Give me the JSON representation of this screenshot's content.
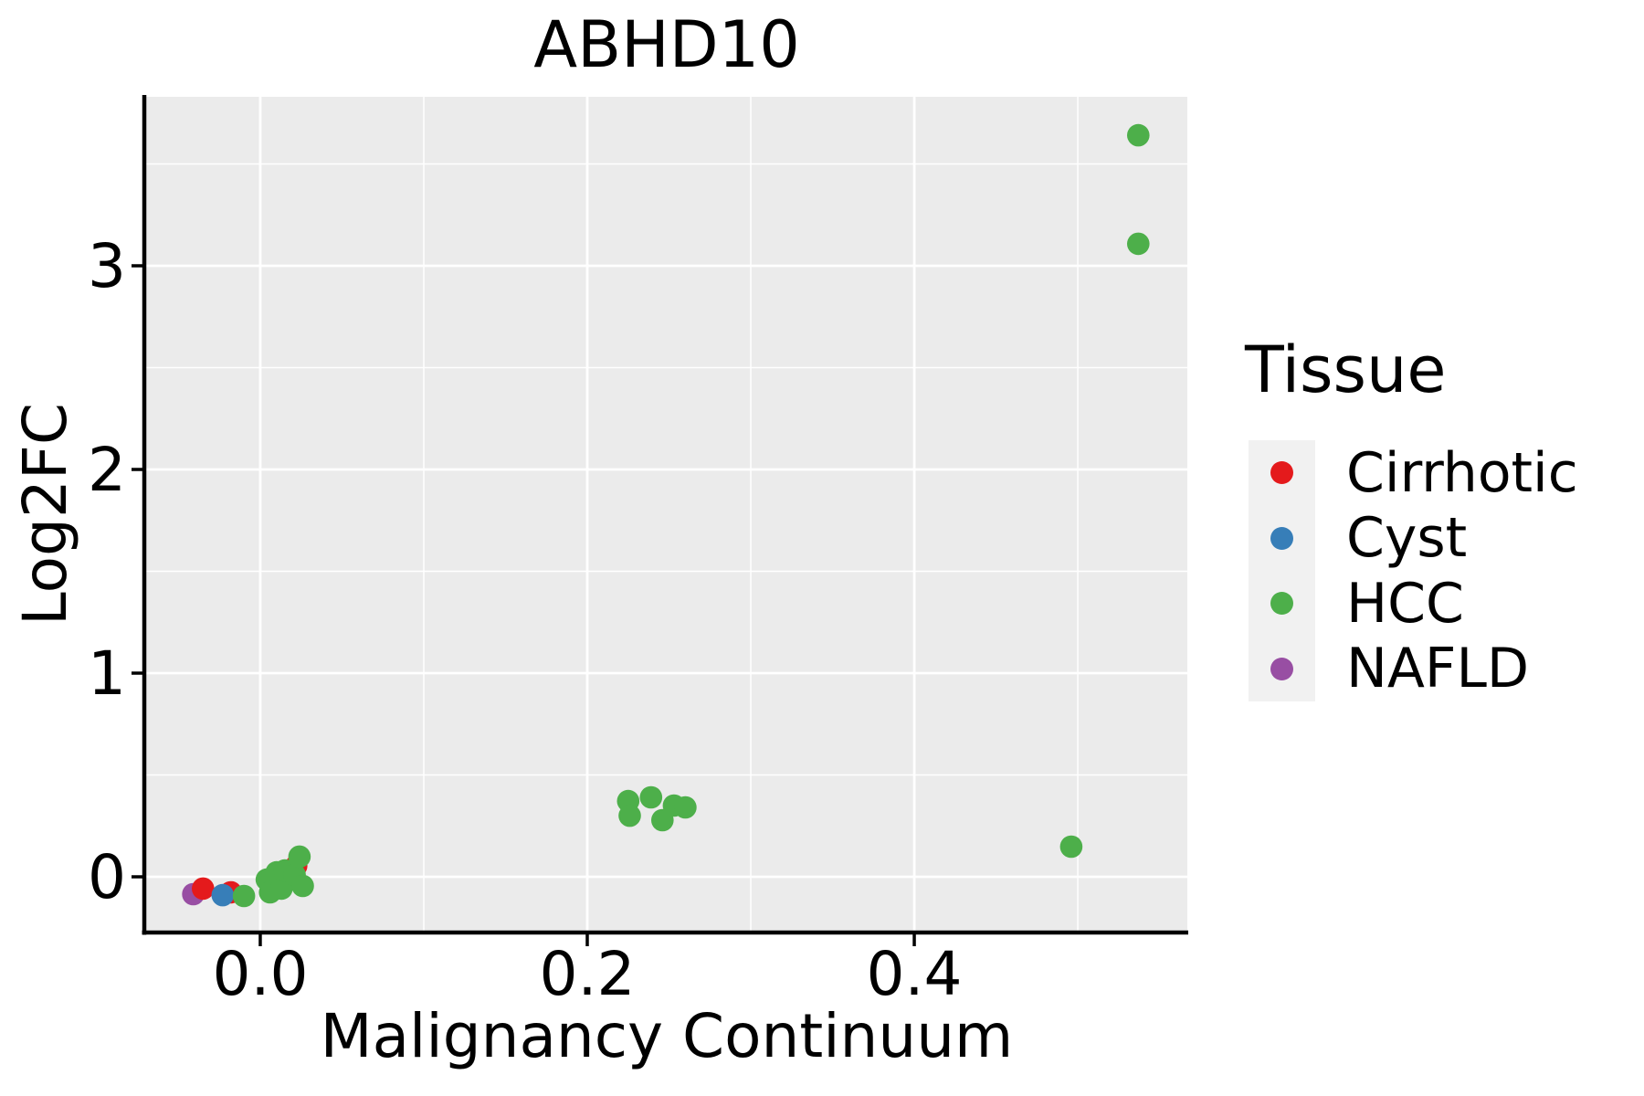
{
  "figure": {
    "background": "#FFFFFF"
  },
  "chart_data": {
    "type": "scatter",
    "title": "ABHD10",
    "xlabel": "Malignancy Continuum",
    "ylabel": "Log2FC",
    "xlim": [
      -0.0698,
      0.567
    ],
    "ylim": [
      -0.2735,
      3.8296
    ],
    "x_ticks": {
      "major": [
        0.0,
        0.2,
        0.4
      ],
      "major_labels": [
        "0.0",
        "0.2",
        "0.4"
      ],
      "minor": [
        0.1,
        0.3,
        0.5
      ]
    },
    "y_ticks": {
      "major": [
        0,
        1,
        2,
        3
      ],
      "major_labels": [
        "0",
        "1",
        "2",
        "3"
      ],
      "minor": [
        0.5,
        1.5,
        2.5,
        3.5
      ]
    },
    "grid": "major and minor white gridlines on gray panel",
    "legend_position": "right",
    "panel_bg": "#EBEBEB",
    "grid_color": "#FFFFFF",
    "axis_color": "#000000",
    "series": [
      {
        "name": "NAFLD",
        "color": "#984EA3",
        "points": [
          [
            -0.041,
            -0.085
          ]
        ]
      },
      {
        "name": "Cirrhotic",
        "color": "#E41A1C",
        "points": [
          [
            -0.035,
            -0.058
          ],
          [
            -0.018,
            -0.076
          ],
          [
            0.022,
            0.054
          ]
        ]
      },
      {
        "name": "Cyst",
        "color": "#377EB8",
        "points": [
          [
            -0.023,
            -0.09
          ]
        ]
      },
      {
        "name": "HCC",
        "color": "#4DAF4A",
        "points": [
          [
            -0.01,
            -0.094
          ],
          [
            0.004,
            -0.014
          ],
          [
            0.006,
            -0.076
          ],
          [
            0.01,
            0.022
          ],
          [
            0.013,
            -0.058
          ],
          [
            0.015,
            0.031
          ],
          [
            0.021,
            0.009
          ],
          [
            0.026,
            -0.045
          ],
          [
            0.024,
            0.099
          ],
          [
            0.225,
            0.372
          ],
          [
            0.226,
            0.3
          ],
          [
            0.239,
            0.39
          ],
          [
            0.246,
            0.278
          ],
          [
            0.253,
            0.35
          ],
          [
            0.26,
            0.341
          ],
          [
            0.496,
            0.148
          ],
          [
            0.537,
            3.641
          ],
          [
            0.537,
            3.108
          ]
        ]
      }
    ]
  },
  "legend": {
    "title": "Tissue",
    "key_bg": "#F1F1F1",
    "items": [
      {
        "label": "Cirrhotic",
        "color": "#E41A1C"
      },
      {
        "label": "Cyst",
        "color": "#377EB8"
      },
      {
        "label": "HCC",
        "color": "#4DAF4A"
      },
      {
        "label": "NAFLD",
        "color": "#984EA3"
      }
    ]
  }
}
